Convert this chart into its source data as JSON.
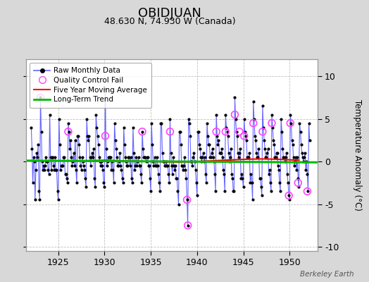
{
  "title": "OBIDJUAN",
  "subtitle": "48.630 N, 74.930 W (Canada)",
  "ylabel": "Temperature Anomaly (°C)",
  "credit": "Berkeley Earth",
  "xlim": [
    1921.5,
    1953
  ],
  "ylim": [
    -10.5,
    12
  ],
  "yticks": [
    -10,
    -5,
    0,
    5,
    10
  ],
  "bg_color": "#d8d8d8",
  "plot_bg_color": "#ffffff",
  "grid_color": "#c0c0c0",
  "raw_line_color": "#6666ff",
  "raw_dot_color": "#000000",
  "qc_color": "#ff44ff",
  "moving_avg_color": "#ff0000",
  "trend_color": "#00bb00",
  "raw_data": [
    [
      1922.083,
      4.0
    ],
    [
      1922.167,
      1.5
    ],
    [
      1922.25,
      -2.5
    ],
    [
      1922.333,
      0.5
    ],
    [
      1922.417,
      0.0
    ],
    [
      1922.5,
      -4.5
    ],
    [
      1922.583,
      -1.0
    ],
    [
      1922.667,
      1.0
    ],
    [
      1922.75,
      0.5
    ],
    [
      1922.833,
      2.0
    ],
    [
      1922.917,
      -3.5
    ],
    [
      1923.0,
      -4.5
    ],
    [
      1923.083,
      7.5
    ],
    [
      1923.167,
      3.5
    ],
    [
      1923.25,
      0.0
    ],
    [
      1923.333,
      -1.0
    ],
    [
      1923.417,
      -0.5
    ],
    [
      1923.5,
      -1.0
    ],
    [
      1923.583,
      -0.5
    ],
    [
      1923.667,
      0.5
    ],
    [
      1923.75,
      0.0
    ],
    [
      1923.833,
      0.0
    ],
    [
      1923.917,
      -1.0
    ],
    [
      1924.0,
      -1.5
    ],
    [
      1924.083,
      5.5
    ],
    [
      1924.167,
      0.5
    ],
    [
      1924.25,
      -1.0
    ],
    [
      1924.333,
      0.5
    ],
    [
      1924.417,
      0.5
    ],
    [
      1924.5,
      -0.5
    ],
    [
      1924.583,
      -1.0
    ],
    [
      1924.667,
      0.5
    ],
    [
      1924.75,
      -1.0
    ],
    [
      1924.833,
      -1.0
    ],
    [
      1924.917,
      -3.5
    ],
    [
      1925.0,
      -4.5
    ],
    [
      1925.083,
      5.0
    ],
    [
      1925.167,
      2.0
    ],
    [
      1925.25,
      -1.0
    ],
    [
      1925.333,
      -0.5
    ],
    [
      1925.417,
      -0.5
    ],
    [
      1925.5,
      -0.5
    ],
    [
      1925.583,
      0.5
    ],
    [
      1925.667,
      0.5
    ],
    [
      1925.75,
      -1.5
    ],
    [
      1925.833,
      -1.5
    ],
    [
      1925.917,
      -2.0
    ],
    [
      1926.0,
      -2.5
    ],
    [
      1926.083,
      4.5
    ],
    [
      1926.167,
      3.5
    ],
    [
      1926.25,
      1.5
    ],
    [
      1926.333,
      2.5
    ],
    [
      1926.417,
      0.5
    ],
    [
      1926.5,
      -0.5
    ],
    [
      1926.583,
      0.0
    ],
    [
      1926.667,
      1.0
    ],
    [
      1926.75,
      -0.5
    ],
    [
      1926.833,
      2.5
    ],
    [
      1926.917,
      -1.0
    ],
    [
      1927.0,
      -2.5
    ],
    [
      1927.083,
      3.0
    ],
    [
      1927.167,
      3.0
    ],
    [
      1927.25,
      2.0
    ],
    [
      1927.333,
      0.5
    ],
    [
      1927.417,
      -0.5
    ],
    [
      1927.5,
      -1.0
    ],
    [
      1927.583,
      0.5
    ],
    [
      1927.667,
      0.0
    ],
    [
      1927.75,
      -0.5
    ],
    [
      1927.833,
      -1.0
    ],
    [
      1927.917,
      -2.0
    ],
    [
      1928.0,
      -3.0
    ],
    [
      1928.083,
      5.0
    ],
    [
      1928.167,
      3.0
    ],
    [
      1928.25,
      2.5
    ],
    [
      1928.333,
      3.0
    ],
    [
      1928.417,
      0.5
    ],
    [
      1928.5,
      -0.5
    ],
    [
      1928.583,
      0.5
    ],
    [
      1928.667,
      1.0
    ],
    [
      1928.75,
      0.5
    ],
    [
      1928.833,
      1.5
    ],
    [
      1928.917,
      -2.0
    ],
    [
      1929.0,
      -3.0
    ],
    [
      1929.083,
      5.5
    ],
    [
      1929.167,
      4.0
    ],
    [
      1929.25,
      3.0
    ],
    [
      1929.333,
      2.0
    ],
    [
      1929.417,
      0.5
    ],
    [
      1929.5,
      0.0
    ],
    [
      1929.583,
      -0.5
    ],
    [
      1929.667,
      0.0
    ],
    [
      1929.75,
      -0.5
    ],
    [
      1929.833,
      -1.0
    ],
    [
      1929.917,
      -2.5
    ],
    [
      1930.0,
      -3.0
    ],
    [
      1930.083,
      8.5
    ],
    [
      1930.167,
      1.5
    ],
    [
      1930.25,
      -0.5
    ],
    [
      1930.333,
      0.0
    ],
    [
      1930.417,
      0.5
    ],
    [
      1930.5,
      0.5
    ],
    [
      1930.583,
      0.5
    ],
    [
      1930.667,
      0.5
    ],
    [
      1930.75,
      -1.0
    ],
    [
      1930.833,
      0.0
    ],
    [
      1930.917,
      -1.0
    ],
    [
      1931.0,
      -2.5
    ],
    [
      1931.083,
      4.5
    ],
    [
      1931.167,
      2.5
    ],
    [
      1931.25,
      1.5
    ],
    [
      1931.333,
      0.5
    ],
    [
      1931.417,
      -0.5
    ],
    [
      1931.5,
      -0.5
    ],
    [
      1931.583,
      0.0
    ],
    [
      1931.667,
      1.0
    ],
    [
      1931.75,
      -0.5
    ],
    [
      1931.833,
      -1.0
    ],
    [
      1931.917,
      -2.0
    ],
    [
      1932.0,
      -2.5
    ],
    [
      1932.083,
      4.0
    ],
    [
      1932.167,
      2.0
    ],
    [
      1932.25,
      0.5
    ],
    [
      1932.333,
      0.0
    ],
    [
      1932.417,
      -0.5
    ],
    [
      1932.5,
      -0.5
    ],
    [
      1932.583,
      0.5
    ],
    [
      1932.667,
      0.5
    ],
    [
      1932.75,
      -0.5
    ],
    [
      1932.833,
      0.5
    ],
    [
      1932.917,
      -2.0
    ],
    [
      1933.0,
      -2.5
    ],
    [
      1933.083,
      4.0
    ],
    [
      1933.167,
      1.0
    ],
    [
      1933.25,
      -1.0
    ],
    [
      1933.333,
      -0.5
    ],
    [
      1933.417,
      0.5
    ],
    [
      1933.5,
      -0.5
    ],
    [
      1933.583,
      0.0
    ],
    [
      1933.667,
      0.5
    ],
    [
      1933.75,
      -0.5
    ],
    [
      1933.833,
      -0.5
    ],
    [
      1933.917,
      -1.5
    ],
    [
      1934.0,
      -2.5
    ],
    [
      1934.083,
      3.5
    ],
    [
      1934.167,
      1.5
    ],
    [
      1934.25,
      0.5
    ],
    [
      1934.333,
      0.5
    ],
    [
      1934.417,
      0.5
    ],
    [
      1934.5,
      0.0
    ],
    [
      1934.583,
      0.5
    ],
    [
      1934.667,
      0.5
    ],
    [
      1934.75,
      -0.5
    ],
    [
      1934.833,
      -0.5
    ],
    [
      1934.917,
      -2.0
    ],
    [
      1935.0,
      -3.5
    ],
    [
      1935.083,
      4.5
    ],
    [
      1935.167,
      2.0
    ],
    [
      1935.25,
      0.0
    ],
    [
      1935.333,
      -0.5
    ],
    [
      1935.417,
      0.5
    ],
    [
      1935.5,
      -0.5
    ],
    [
      1935.583,
      -0.5
    ],
    [
      1935.667,
      0.5
    ],
    [
      1935.75,
      -0.5
    ],
    [
      1935.833,
      -1.5
    ],
    [
      1935.917,
      -2.5
    ],
    [
      1936.0,
      -3.5
    ],
    [
      1936.083,
      4.5
    ],
    [
      1936.167,
      4.5
    ],
    [
      1936.25,
      1.0
    ],
    [
      1936.333,
      0.0
    ],
    [
      1936.417,
      0.0
    ],
    [
      1936.5,
      -0.5
    ],
    [
      1936.583,
      -0.5
    ],
    [
      1936.667,
      0.0
    ],
    [
      1936.75,
      -0.5
    ],
    [
      1936.833,
      -0.5
    ],
    [
      1936.917,
      -1.5
    ],
    [
      1937.0,
      -2.5
    ],
    [
      1937.083,
      5.0
    ],
    [
      1937.167,
      1.0
    ],
    [
      1937.25,
      -0.5
    ],
    [
      1937.333,
      -1.5
    ],
    [
      1937.417,
      0.5
    ],
    [
      1937.5,
      -0.5
    ],
    [
      1937.583,
      -1.0
    ],
    [
      1937.667,
      -0.5
    ],
    [
      1937.75,
      -2.0
    ],
    [
      1937.833,
      -2.0
    ],
    [
      1937.917,
      -3.5
    ],
    [
      1938.0,
      -5.0
    ],
    [
      1938.083,
      3.5
    ],
    [
      1938.167,
      3.5
    ],
    [
      1938.25,
      2.0
    ],
    [
      1938.333,
      -0.5
    ],
    [
      1938.417,
      -0.5
    ],
    [
      1938.5,
      -1.0
    ],
    [
      1938.583,
      -0.5
    ],
    [
      1938.667,
      0.5
    ],
    [
      1938.75,
      -1.0
    ],
    [
      1938.833,
      -2.0
    ],
    [
      1938.917,
      -4.5
    ],
    [
      1939.0,
      -7.5
    ],
    [
      1939.083,
      5.0
    ],
    [
      1939.167,
      4.5
    ],
    [
      1939.25,
      3.0
    ],
    [
      1939.333,
      0.0
    ],
    [
      1939.417,
      0.0
    ],
    [
      1939.5,
      -0.5
    ],
    [
      1939.583,
      0.5
    ],
    [
      1939.667,
      1.0
    ],
    [
      1939.75,
      0.0
    ],
    [
      1939.833,
      -1.0
    ],
    [
      1939.917,
      -2.5
    ],
    [
      1940.0,
      -4.0
    ],
    [
      1940.083,
      3.5
    ],
    [
      1940.167,
      3.5
    ],
    [
      1940.25,
      2.0
    ],
    [
      1940.333,
      1.5
    ],
    [
      1940.417,
      0.5
    ],
    [
      1940.5,
      0.0
    ],
    [
      1940.583,
      0.5
    ],
    [
      1940.667,
      1.0
    ],
    [
      1940.75,
      0.0
    ],
    [
      1940.833,
      0.5
    ],
    [
      1940.917,
      -1.5
    ],
    [
      1941.0,
      -2.5
    ],
    [
      1941.083,
      4.5
    ],
    [
      1941.167,
      3.0
    ],
    [
      1941.25,
      2.0
    ],
    [
      1941.333,
      2.0
    ],
    [
      1941.417,
      0.5
    ],
    [
      1941.5,
      0.5
    ],
    [
      1941.583,
      1.0
    ],
    [
      1941.667,
      1.5
    ],
    [
      1941.75,
      0.5
    ],
    [
      1941.833,
      0.0
    ],
    [
      1941.917,
      -1.5
    ],
    [
      1942.0,
      -3.5
    ],
    [
      1942.083,
      5.5
    ],
    [
      1942.167,
      3.0
    ],
    [
      1942.25,
      2.0
    ],
    [
      1942.333,
      2.5
    ],
    [
      1942.417,
      1.0
    ],
    [
      1942.5,
      1.0
    ],
    [
      1942.583,
      1.0
    ],
    [
      1942.667,
      1.5
    ],
    [
      1942.75,
      0.5
    ],
    [
      1942.833,
      -1.0
    ],
    [
      1942.917,
      -1.5
    ],
    [
      1943.0,
      -3.5
    ],
    [
      1943.083,
      5.5
    ],
    [
      1943.167,
      4.0
    ],
    [
      1943.25,
      3.5
    ],
    [
      1943.333,
      3.0
    ],
    [
      1943.417,
      1.0
    ],
    [
      1943.5,
      0.0
    ],
    [
      1943.583,
      0.5
    ],
    [
      1943.667,
      1.5
    ],
    [
      1943.75,
      -1.5
    ],
    [
      1943.833,
      -2.0
    ],
    [
      1943.917,
      -3.5
    ],
    [
      1944.0,
      -3.5
    ],
    [
      1944.083,
      7.5
    ],
    [
      1944.167,
      5.0
    ],
    [
      1944.25,
      3.5
    ],
    [
      1944.333,
      3.0
    ],
    [
      1944.417,
      1.0
    ],
    [
      1944.5,
      0.5
    ],
    [
      1944.583,
      1.0
    ],
    [
      1944.667,
      1.5
    ],
    [
      1944.75,
      -2.0
    ],
    [
      1944.833,
      -1.5
    ],
    [
      1944.917,
      -2.0
    ],
    [
      1945.0,
      -3.0
    ],
    [
      1945.083,
      5.0
    ],
    [
      1945.167,
      3.5
    ],
    [
      1945.25,
      3.0
    ],
    [
      1945.333,
      2.5
    ],
    [
      1945.417,
      0.5
    ],
    [
      1945.5,
      0.5
    ],
    [
      1945.583,
      0.5
    ],
    [
      1945.667,
      1.0
    ],
    [
      1945.75,
      -2.5
    ],
    [
      1945.833,
      -1.5
    ],
    [
      1945.917,
      -2.5
    ],
    [
      1946.0,
      -4.5
    ],
    [
      1946.083,
      7.0
    ],
    [
      1946.167,
      5.0
    ],
    [
      1946.25,
      3.0
    ],
    [
      1946.333,
      2.5
    ],
    [
      1946.417,
      1.0
    ],
    [
      1946.5,
      0.5
    ],
    [
      1946.583,
      0.5
    ],
    [
      1946.667,
      1.5
    ],
    [
      1946.75,
      -2.0
    ],
    [
      1946.833,
      -2.0
    ],
    [
      1946.917,
      -3.0
    ],
    [
      1947.0,
      -4.0
    ],
    [
      1947.083,
      6.5
    ],
    [
      1947.167,
      4.0
    ],
    [
      1947.25,
      2.5
    ],
    [
      1947.333,
      1.5
    ],
    [
      1947.417,
      0.5
    ],
    [
      1947.5,
      0.5
    ],
    [
      1947.583,
      1.0
    ],
    [
      1947.667,
      1.5
    ],
    [
      1947.75,
      -1.5
    ],
    [
      1947.833,
      -1.0
    ],
    [
      1947.917,
      -2.5
    ],
    [
      1948.0,
      -3.5
    ],
    [
      1948.083,
      5.5
    ],
    [
      1948.167,
      4.0
    ],
    [
      1948.25,
      2.5
    ],
    [
      1948.333,
      2.0
    ],
    [
      1948.417,
      0.5
    ],
    [
      1948.5,
      0.5
    ],
    [
      1948.583,
      1.0
    ],
    [
      1948.667,
      1.0
    ],
    [
      1948.75,
      -0.5
    ],
    [
      1948.833,
      -1.0
    ],
    [
      1948.917,
      -2.5
    ],
    [
      1949.0,
      -3.5
    ],
    [
      1949.083,
      5.0
    ],
    [
      1949.167,
      3.5
    ],
    [
      1949.25,
      1.5
    ],
    [
      1949.333,
      0.5
    ],
    [
      1949.417,
      0.5
    ],
    [
      1949.5,
      0.0
    ],
    [
      1949.583,
      0.5
    ],
    [
      1949.667,
      1.0
    ],
    [
      1949.75,
      -1.5
    ],
    [
      1949.833,
      -2.5
    ],
    [
      1949.917,
      -4.0
    ],
    [
      1950.0,
      -4.5
    ],
    [
      1950.083,
      5.5
    ],
    [
      1950.167,
      4.5
    ],
    [
      1950.25,
      2.5
    ],
    [
      1950.333,
      2.0
    ],
    [
      1950.417,
      0.5
    ],
    [
      1950.5,
      -0.5
    ],
    [
      1950.583,
      0.0
    ],
    [
      1950.667,
      0.5
    ],
    [
      1950.75,
      -1.0
    ],
    [
      1950.833,
      0.5
    ],
    [
      1950.917,
      -2.0
    ],
    [
      1951.0,
      -3.0
    ],
    [
      1951.083,
      4.5
    ],
    [
      1951.167,
      3.5
    ],
    [
      1951.25,
      2.0
    ],
    [
      1951.333,
      1.0
    ],
    [
      1951.417,
      0.5
    ],
    [
      1951.5,
      0.0
    ],
    [
      1951.583,
      0.5
    ],
    [
      1951.667,
      1.0
    ],
    [
      1951.75,
      -1.0
    ],
    [
      1951.833,
      0.0
    ],
    [
      1951.917,
      -1.5
    ],
    [
      1952.0,
      -3.5
    ],
    [
      1952.083,
      4.5
    ],
    [
      1952.167,
      2.5
    ]
  ],
  "qc_fails": [
    [
      1923.083,
      7.5
    ],
    [
      1926.083,
      3.5
    ],
    [
      1930.083,
      3.0
    ],
    [
      1934.083,
      3.5
    ],
    [
      1937.083,
      3.5
    ],
    [
      1938.917,
      -4.5
    ],
    [
      1939.0,
      -7.5
    ],
    [
      1942.083,
      3.5
    ],
    [
      1943.083,
      3.5
    ],
    [
      1944.083,
      5.5
    ],
    [
      1944.583,
      3.5
    ],
    [
      1945.083,
      3.0
    ],
    [
      1946.083,
      4.5
    ],
    [
      1947.083,
      3.5
    ],
    [
      1948.083,
      4.5
    ],
    [
      1949.917,
      -4.0
    ],
    [
      1950.083,
      4.5
    ],
    [
      1950.917,
      -2.5
    ],
    [
      1951.917,
      -3.5
    ]
  ],
  "moving_avg": [
    [
      1926.0,
      0.1
    ],
    [
      1927.0,
      0.08
    ],
    [
      1928.0,
      0.1
    ],
    [
      1929.0,
      0.12
    ],
    [
      1930.0,
      0.15
    ],
    [
      1931.0,
      0.12
    ],
    [
      1932.0,
      0.08
    ],
    [
      1933.0,
      0.05
    ],
    [
      1934.0,
      0.02
    ],
    [
      1935.0,
      0.0
    ],
    [
      1936.0,
      -0.02
    ],
    [
      1937.0,
      -0.05
    ],
    [
      1938.0,
      -0.08
    ],
    [
      1939.0,
      -0.05
    ],
    [
      1940.0,
      0.0
    ],
    [
      1941.0,
      0.05
    ],
    [
      1942.0,
      0.1
    ],
    [
      1943.0,
      0.15
    ],
    [
      1944.0,
      0.2
    ],
    [
      1945.0,
      0.25
    ],
    [
      1946.0,
      0.28
    ],
    [
      1947.0,
      0.3
    ],
    [
      1948.0,
      0.28
    ],
    [
      1949.0,
      0.25
    ],
    [
      1950.0,
      0.2
    ],
    [
      1951.0,
      0.15
    ]
  ],
  "trend_x": [
    1921.5,
    1953
  ],
  "trend_y": [
    0.1,
    -0.1
  ],
  "xticks": [
    1925,
    1930,
    1935,
    1940,
    1945,
    1950
  ]
}
